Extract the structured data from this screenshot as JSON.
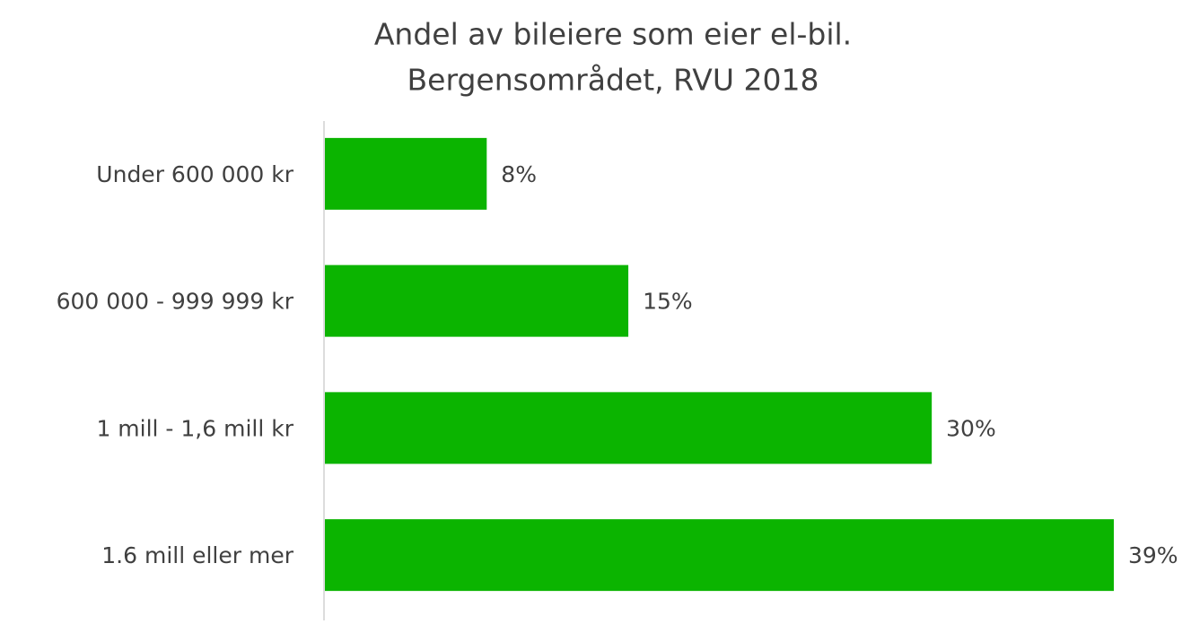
{
  "chart_data": {
    "type": "bar",
    "orientation": "horizontal",
    "title": "Andel av bileiere som eier el-bil.",
    "subtitle": "Bergensområdet, RVU 2018",
    "categories": [
      "Under 600 000 kr",
      "600 000 - 999 999 kr",
      "1 mill - 1,6 mill kr",
      "1.6 mill eller mer"
    ],
    "values": [
      8,
      15,
      30,
      39
    ],
    "value_labels": [
      "8%",
      "15%",
      "30%",
      "39%"
    ],
    "color": "#0bb400"
  }
}
